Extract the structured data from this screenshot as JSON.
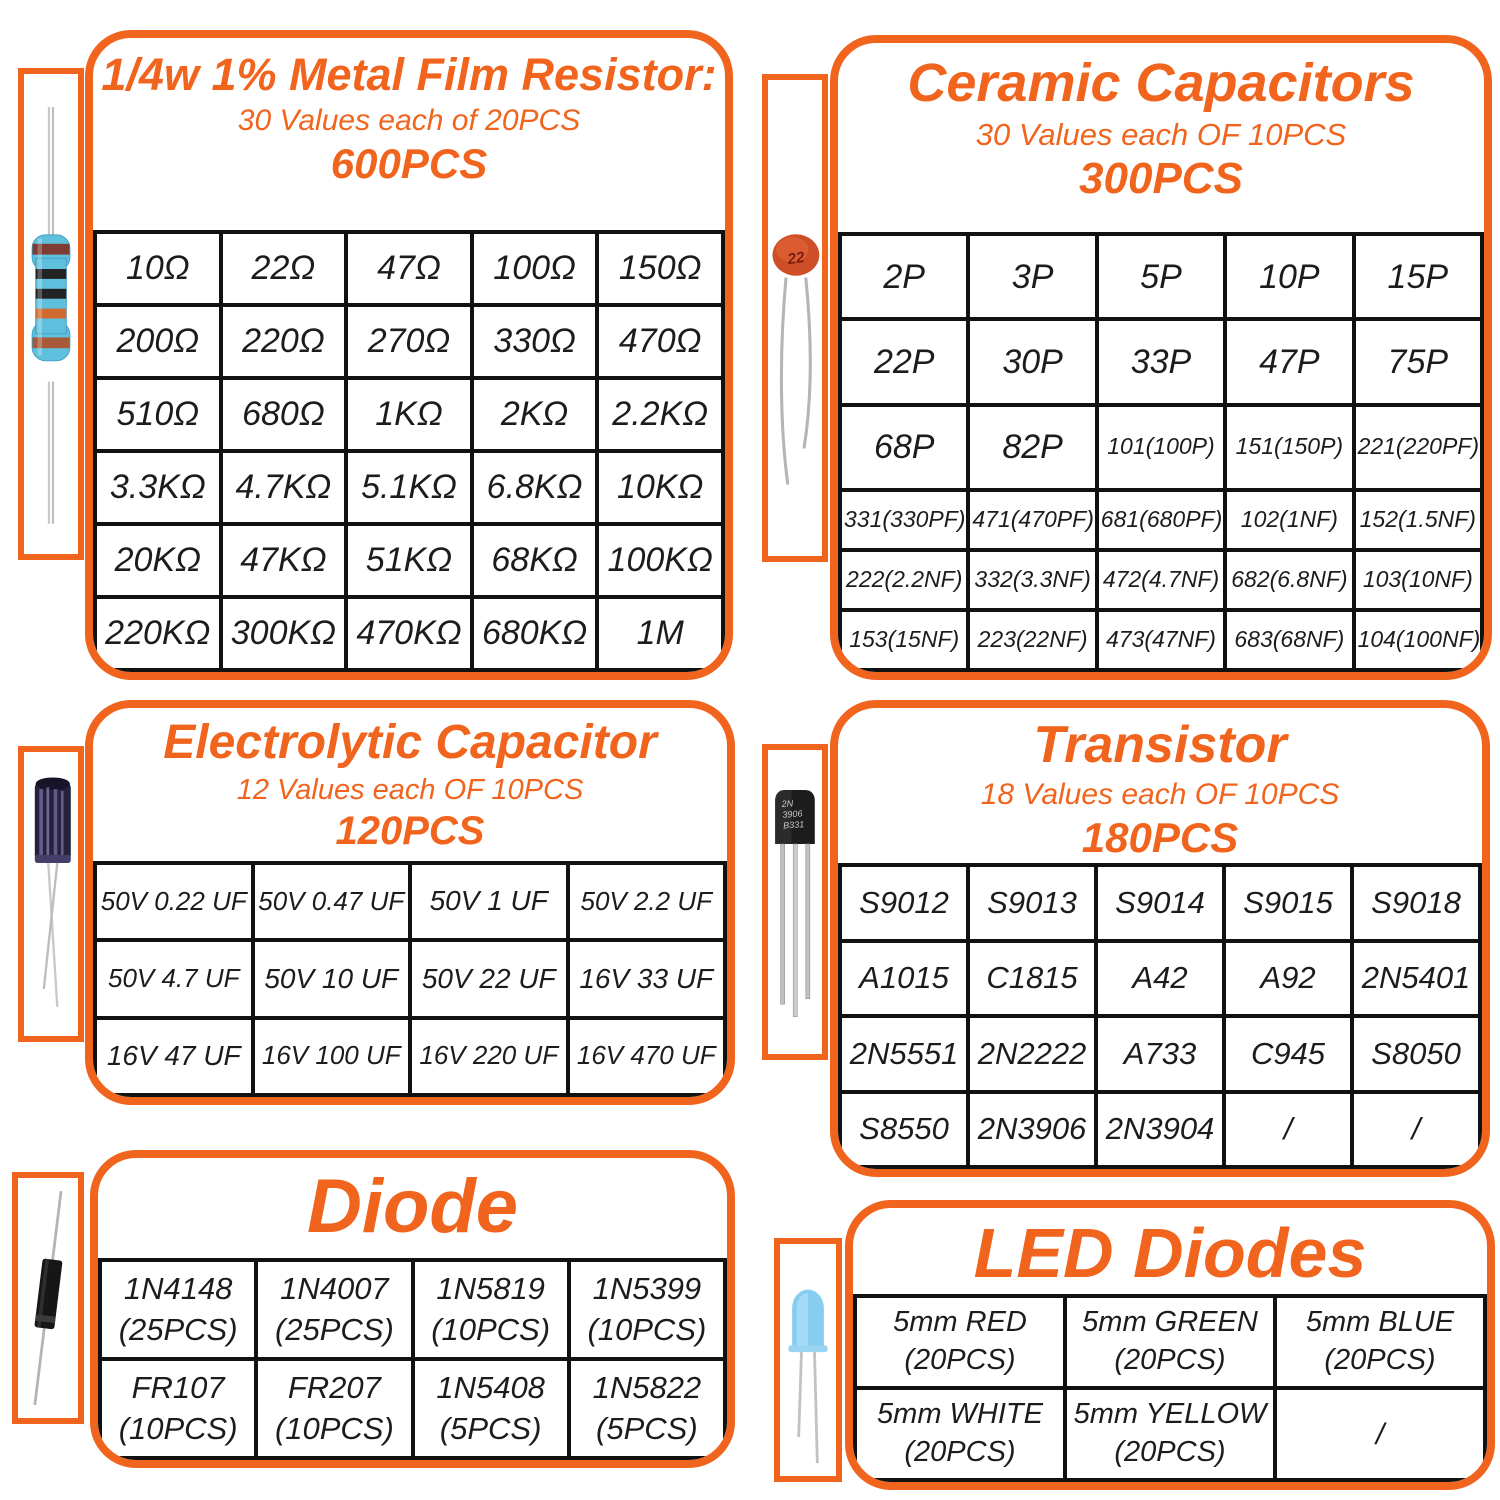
{
  "colors": {
    "accent": "#F0641E",
    "grid_line": "#111111",
    "cell_text": "#1c1c1c"
  },
  "panels": {
    "resistor": {
      "title": "1/4w 1% Metal Film Resistor:",
      "subtitle": "30 Values each of 20PCS",
      "count": "600PCS",
      "rows": [
        [
          "10Ω",
          "22Ω",
          "47Ω",
          "100Ω",
          "150Ω"
        ],
        [
          "200Ω",
          "220Ω",
          "270Ω",
          "330Ω",
          "470Ω"
        ],
        [
          "510Ω",
          "680Ω",
          "1KΩ",
          "2KΩ",
          "2.2KΩ"
        ],
        [
          "3.3KΩ",
          "4.7KΩ",
          "5.1KΩ",
          "6.8KΩ",
          "10KΩ"
        ],
        [
          "20KΩ",
          "47KΩ",
          "51KΩ",
          "68KΩ",
          "100KΩ"
        ],
        [
          "220KΩ",
          "300KΩ",
          "470KΩ",
          "680KΩ",
          "1M"
        ]
      ]
    },
    "ceramic": {
      "title": "Ceramic Capacitors",
      "subtitle": "30 Values each OF 10PCS",
      "count": "300PCS",
      "rows": [
        [
          "2P",
          "3P",
          "5P",
          "10P",
          "15P"
        ],
        [
          "22P",
          "30P",
          "33P",
          "47P",
          "75P"
        ],
        [
          "68P",
          "82P",
          "101(100P)",
          "151(150P)",
          "221(220PF)"
        ],
        [
          "331(330PF)",
          "471(470PF)",
          "681(680PF)",
          "102(1NF)",
          "152(1.5NF)"
        ],
        [
          "222(2.2NF)",
          "332(3.3NF)",
          "472(4.7NF)",
          "682(6.8NF)",
          "103(10NF)"
        ],
        [
          "153(15NF)",
          "223(22NF)",
          "473(47NF)",
          "683(68NF)",
          "104(100NF)"
        ]
      ]
    },
    "electrolytic": {
      "title": "Electrolytic Capacitor",
      "subtitle": "12 Values each OF 10PCS",
      "count": "120PCS",
      "rows": [
        [
          "50V  0.22 UF",
          "50V  0.47 UF",
          "50V  1 UF",
          "50V  2.2 UF"
        ],
        [
          "50V  4.7 UF",
          "50V  10 UF",
          "50V  22 UF",
          "16V  33 UF"
        ],
        [
          "16V  47 UF",
          "16V  100 UF",
          "16V  220 UF",
          "16V  470 UF"
        ]
      ]
    },
    "transistor": {
      "title": "Transistor",
      "subtitle": "18 Values each OF 10PCS",
      "count": "180PCS",
      "rows": [
        [
          "S9012",
          "S9013",
          "S9014",
          "S9015",
          "S9018"
        ],
        [
          "A1015",
          "C1815",
          "A42",
          "A92",
          "2N5401"
        ],
        [
          "2N5551",
          "2N2222",
          "A733",
          "C945",
          "S8050"
        ],
        [
          "S8550",
          "2N3906",
          "2N3904",
          "/",
          "/"
        ]
      ]
    },
    "diode": {
      "title": "Diode",
      "rows": [
        [
          "1N4148\n(25PCS)",
          "1N4007\n(25PCS)",
          "1N5819\n(10PCS)",
          "1N5399\n(10PCS)"
        ],
        [
          "FR107\n(10PCS)",
          "FR207\n(10PCS)",
          "1N5408\n(5PCS)",
          "1N5822\n(5PCS)"
        ]
      ]
    },
    "led": {
      "title": "LED Diodes",
      "rows": [
        [
          "5mm RED\n(20PCS)",
          "5mm GREEN\n(20PCS)",
          "5mm BLUE\n(20PCS)"
        ],
        [
          "5mm WHITE\n(20PCS)",
          "5mm YELLOW\n(20PCS)",
          "/"
        ]
      ]
    }
  },
  "photos": {
    "ceramic_marking": "22",
    "transistor_marking": [
      "2N",
      "3906",
      "B331"
    ]
  }
}
